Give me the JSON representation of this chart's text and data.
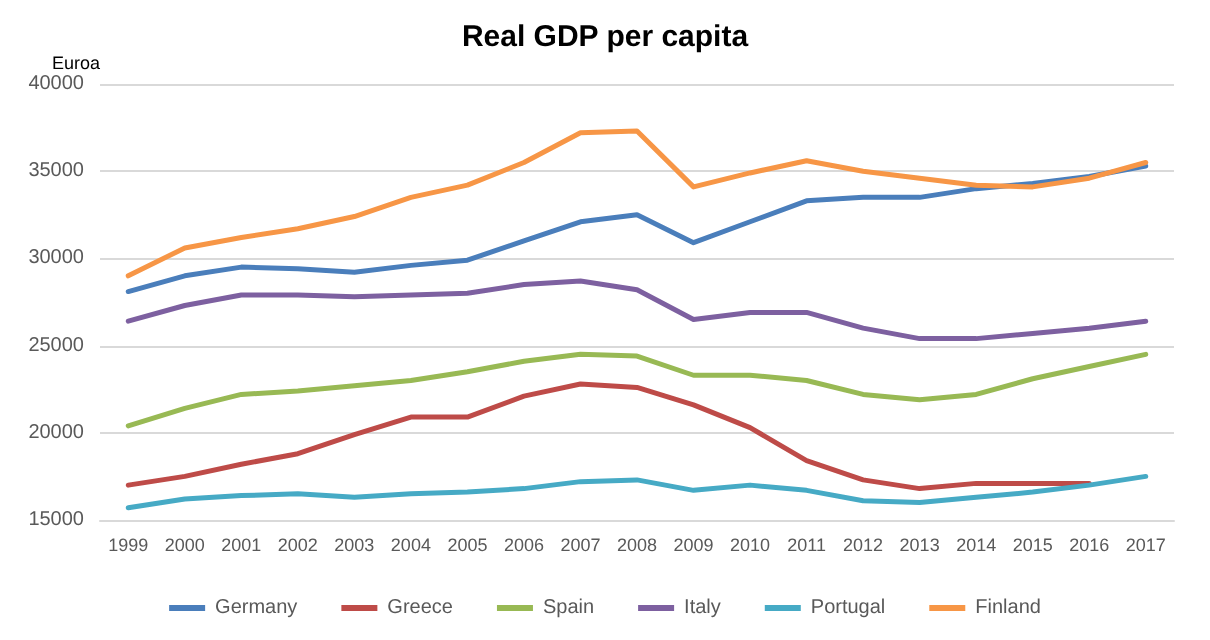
{
  "chart_data": {
    "type": "line",
    "title": "Real GDP per capita",
    "ylabel": "Euroa",
    "categories": [
      "1999",
      "2000",
      "2001",
      "2002",
      "2003",
      "2004",
      "2005",
      "2006",
      "2007",
      "2008",
      "2009",
      "2010",
      "2011",
      "2012",
      "2013",
      "2014",
      "2015",
      "2016",
      "2017"
    ],
    "series": [
      {
        "name": "Germany",
        "color": "#4a7ebb",
        "values": [
          28100,
          29000,
          29500,
          29400,
          29200,
          29600,
          29900,
          31000,
          32100,
          32500,
          30900,
          32100,
          33300,
          33500,
          33500,
          34000,
          34300,
          34700,
          35300
        ]
      },
      {
        "name": "Greece",
        "color": "#be4b48",
        "values": [
          17000,
          17500,
          18200,
          18800,
          19900,
          20900,
          20900,
          22100,
          22800,
          22600,
          21600,
          20300,
          18400,
          17300,
          16800,
          17100,
          17100,
          17100,
          null
        ]
      },
      {
        "name": "Spain",
        "color": "#98b954",
        "values": [
          20400,
          21400,
          22200,
          22400,
          22700,
          23000,
          23500,
          24100,
          24500,
          24400,
          23300,
          23300,
          23000,
          22200,
          21900,
          22200,
          23100,
          23800,
          24500
        ]
      },
      {
        "name": "Italy",
        "color": "#7d60a0",
        "values": [
          26400,
          27300,
          27900,
          27900,
          27800,
          27900,
          28000,
          28500,
          28700,
          28200,
          26500,
          26900,
          26900,
          26000,
          25400,
          25400,
          25700,
          26000,
          26400
        ]
      },
      {
        "name": "Portugal",
        "color": "#46aac5",
        "values": [
          15700,
          16200,
          16400,
          16500,
          16300,
          16500,
          16600,
          16800,
          17200,
          17300,
          16700,
          17000,
          16700,
          16100,
          16000,
          16300,
          16600,
          17000,
          17500
        ]
      },
      {
        "name": "Finland",
        "color": "#f79646",
        "values": [
          29000,
          30600,
          31200,
          31700,
          32400,
          33500,
          34200,
          35500,
          37200,
          37300,
          34100,
          34900,
          35600,
          35000,
          34600,
          34200,
          34100,
          34600,
          35500
        ]
      }
    ],
    "ylim": [
      15000,
      40000
    ],
    "yticks": [
      15000,
      20000,
      25000,
      30000,
      35000,
      40000
    ],
    "grid": "y",
    "legend": "bottom",
    "marker": "none",
    "line_style": "solid"
  }
}
